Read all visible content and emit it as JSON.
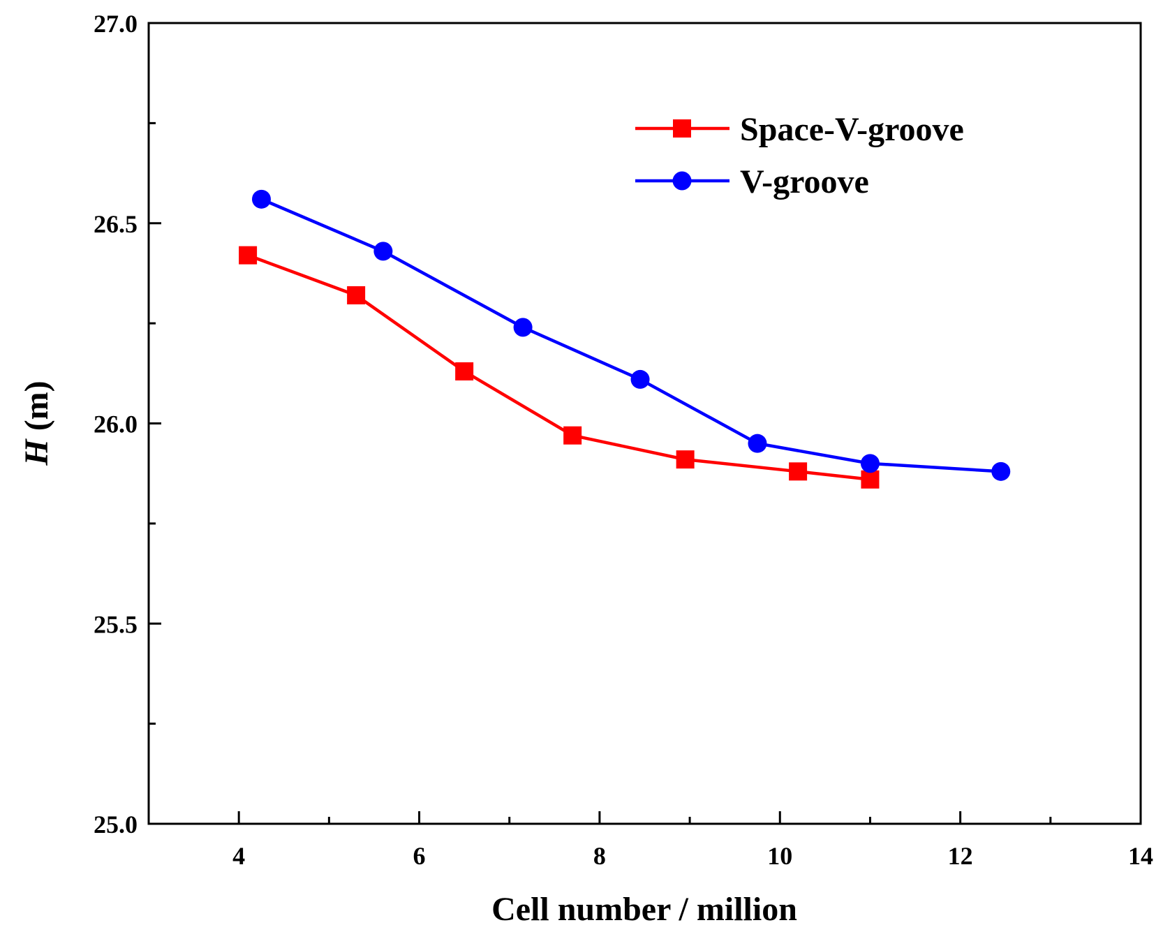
{
  "chart_data": {
    "type": "line",
    "title": "",
    "xlabel": "Cell number / million",
    "ylabel_italic": "H",
    "ylabel_unit": " (m)",
    "xlim": [
      3,
      14
    ],
    "ylim": [
      25.0,
      27.0
    ],
    "x_ticks": [
      4,
      6,
      8,
      10,
      12,
      14
    ],
    "x_tick_labels": [
      "4",
      "6",
      "8",
      "10",
      "12",
      "14"
    ],
    "x_minor_ticks": [
      5,
      7,
      9,
      11,
      13
    ],
    "y_ticks": [
      25.0,
      25.5,
      26.0,
      26.5,
      27.0
    ],
    "y_tick_labels": [
      "25.0",
      "25.5",
      "26.0",
      "26.5",
      "27.0"
    ],
    "y_minor_ticks": [
      25.25,
      25.75,
      26.25,
      26.75
    ],
    "grid": false,
    "legend_position": "top-right",
    "series": [
      {
        "name": "Space-V-groove",
        "color": "#ff0000",
        "marker": "square",
        "x": [
          4.1,
          5.3,
          6.5,
          7.7,
          8.95,
          10.2,
          11.0
        ],
        "y": [
          26.42,
          26.32,
          26.13,
          25.97,
          25.91,
          25.88,
          25.86
        ]
      },
      {
        "name": "V-groove",
        "color": "#0000ff",
        "marker": "circle",
        "x": [
          4.25,
          5.6,
          7.15,
          8.45,
          9.75,
          11.0,
          12.45
        ],
        "y": [
          26.56,
          26.43,
          26.24,
          26.11,
          25.95,
          25.9,
          25.88
        ]
      }
    ]
  }
}
